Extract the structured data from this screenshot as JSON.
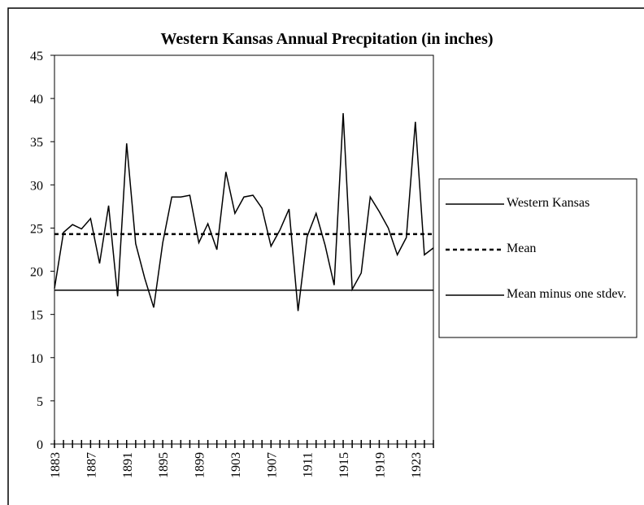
{
  "chart_data": {
    "type": "line",
    "title": "Western Kansas Annual Precpitation (in inches)",
    "x": [
      1883,
      1884,
      1885,
      1886,
      1887,
      1888,
      1889,
      1890,
      1891,
      1892,
      1893,
      1894,
      1895,
      1896,
      1897,
      1898,
      1899,
      1900,
      1901,
      1902,
      1903,
      1904,
      1905,
      1906,
      1907,
      1908,
      1909,
      1910,
      1911,
      1912,
      1913,
      1914,
      1915,
      1916,
      1917,
      1918,
      1919,
      1920,
      1921,
      1922,
      1923,
      1924,
      1925
    ],
    "xlim": [
      1883,
      1925
    ],
    "xticks": [
      1883,
      1887,
      1891,
      1895,
      1899,
      1903,
      1907,
      1911,
      1915,
      1919,
      1923
    ],
    "ylim": [
      0,
      45
    ],
    "yticks": [
      0,
      5,
      10,
      15,
      20,
      25,
      30,
      35,
      40,
      45
    ],
    "series": [
      {
        "name": "Western Kansas",
        "color": "#000000",
        "style": "solid",
        "values": [
          18.0,
          24.5,
          25.4,
          24.9,
          26.1,
          20.9,
          27.6,
          17.1,
          34.8,
          23.2,
          19.2,
          15.8,
          23.3,
          28.6,
          28.6,
          28.8,
          23.3,
          25.5,
          22.5,
          31.5,
          26.7,
          28.6,
          28.8,
          27.3,
          22.9,
          24.8,
          27.2,
          15.4,
          24.0,
          26.7,
          23.0,
          18.4,
          38.3,
          17.9,
          19.8,
          28.6,
          26.9,
          25.0,
          21.9,
          23.9,
          37.3,
          21.9,
          22.7
        ]
      },
      {
        "name": "Mean",
        "color": "#000000",
        "style": "dotted",
        "value": 24.3
      },
      {
        "name": "Mean minus one stdev.",
        "color": "#000000",
        "style": "solid",
        "value": 17.8
      }
    ]
  }
}
